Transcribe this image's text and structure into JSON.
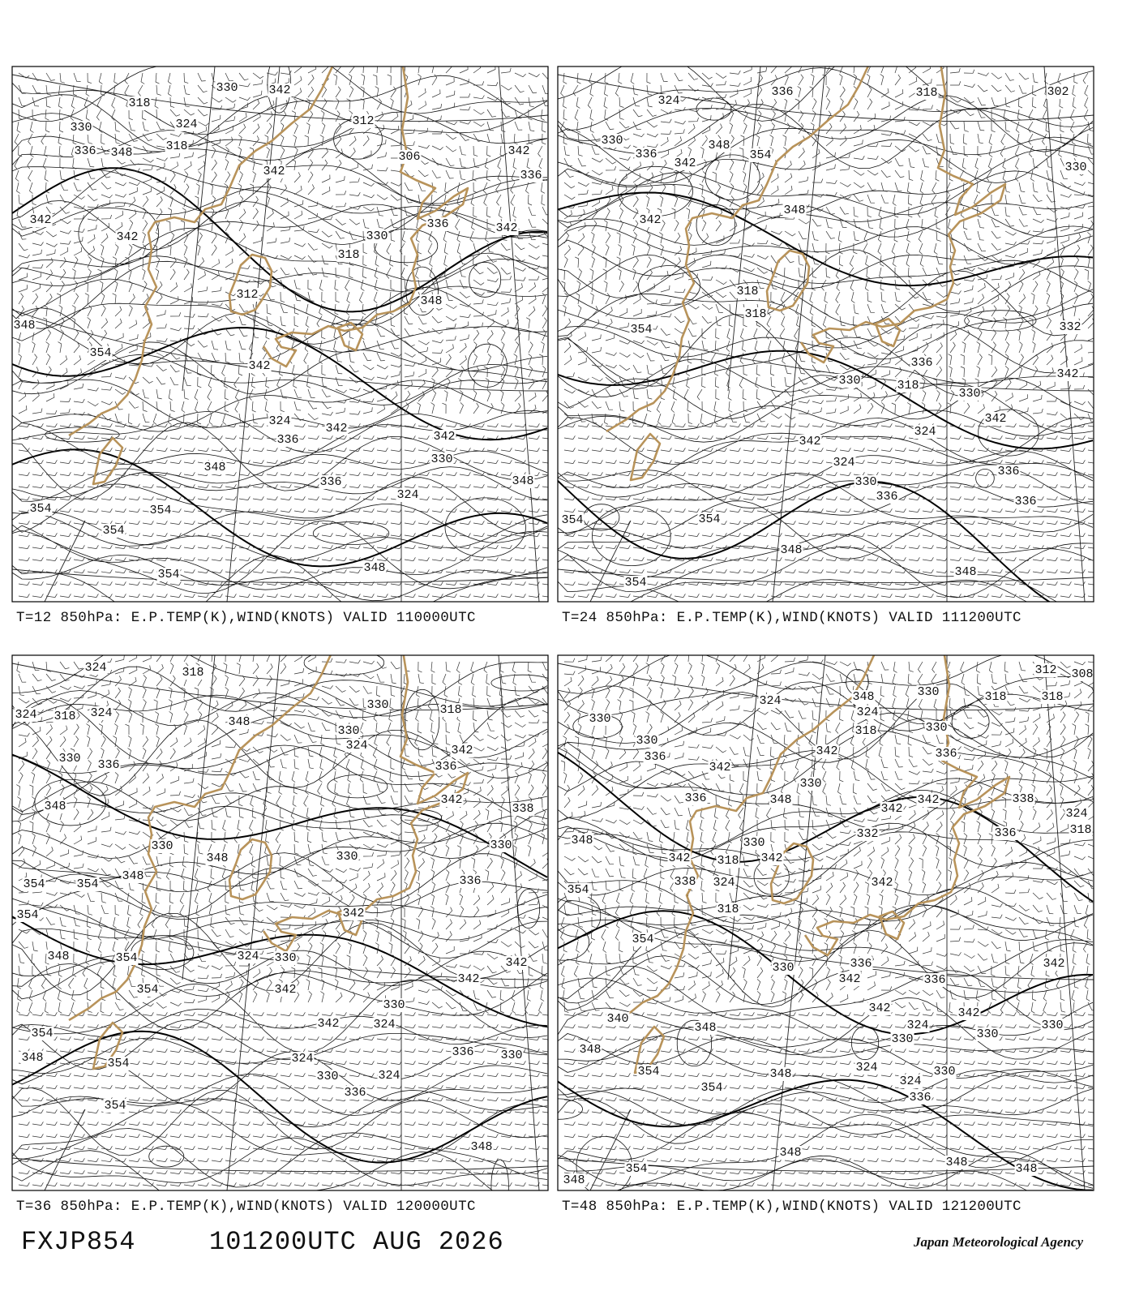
{
  "panels": [
    {
      "caption": "T=12 850hPa: E.P.TEMP(K),WIND(KNOTS) VALID 110000UTC",
      "contour_labels": [
        330,
        342,
        318,
        330,
        324,
        318,
        336,
        348,
        312,
        342,
        306,
        342,
        336,
        342,
        336,
        342,
        330,
        342,
        318,
        312,
        348,
        348,
        354,
        342,
        324,
        342,
        342,
        336,
        330,
        348,
        336,
        348,
        324,
        354,
        354,
        354,
        348,
        354
      ]
    },
    {
      "caption": "T=24 850hPa: E.P.TEMP(K),WIND(KNOTS) VALID 111200UTC",
      "contour_labels": [
        336,
        318,
        302,
        324,
        330,
        348,
        336,
        354,
        342,
        330,
        342,
        348,
        318,
        318,
        332,
        354,
        336,
        342,
        330,
        318,
        330,
        342,
        324,
        342,
        324,
        336,
        330,
        336,
        336,
        354,
        354,
        348,
        348,
        354
      ]
    },
    {
      "caption": "T=36 850hPa: E.P.TEMP(K),WIND(KNOTS) VALID 120000UTC",
      "contour_labels": [
        324,
        318,
        330,
        318,
        324,
        324,
        318,
        348,
        330,
        324,
        342,
        330,
        336,
        336,
        342,
        348,
        338,
        330,
        330,
        330,
        348,
        348,
        336,
        354,
        354,
        342,
        354,
        348,
        354,
        324,
        330,
        342,
        342,
        354,
        342,
        330,
        342,
        324,
        354,
        336,
        330,
        348,
        324,
        354,
        324,
        330,
        336,
        354,
        348
      ]
    },
    {
      "caption": "T=48 850hPa: E.P.TEMP(K),WIND(KNOTS) VALID 121200UTC",
      "contour_labels": [
        312,
        308,
        330,
        324,
        348,
        330,
        318,
        318,
        324,
        318,
        330,
        330,
        336,
        342,
        336,
        342,
        330,
        336,
        348,
        342,
        342,
        338,
        324,
        336,
        318,
        332,
        348,
        330,
        342,
        318,
        342,
        338,
        324,
        342,
        354,
        318,
        354,
        330,
        336,
        342,
        336,
        342,
        342,
        324,
        342,
        330,
        330,
        330,
        340,
        348,
        348,
        354,
        324,
        324,
        330,
        336,
        354,
        348,
        348,
        354,
        348,
        348,
        348
      ]
    }
  ],
  "footer": {
    "code": "FXJP854",
    "issued": "101200UTC AUG 2026",
    "agency": "Japan Meteorological Agency"
  }
}
